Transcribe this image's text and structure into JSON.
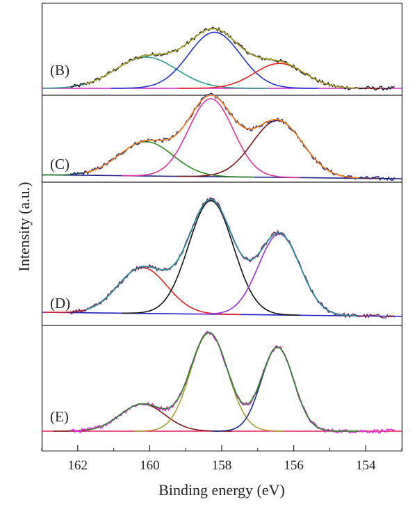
{
  "chart_data": {
    "type": "line",
    "title": "",
    "xlabel": "Binding energy (eV)",
    "ylabel": "Intensity (a.u.)",
    "xlim": [
      163,
      153
    ],
    "x_reversed": true,
    "x_ticks": [
      162,
      160,
      158,
      156,
      154
    ],
    "y_ticks_shown": false,
    "grid": false,
    "legend": "none",
    "panels": [
      {
        "label": "(B)",
        "baseline": 0.0,
        "raw_color": "#1a1a1a",
        "envelope_color": "#a8a030",
        "background_color": "#d020d0",
        "components": [
          {
            "center": 160.1,
            "sigma": 0.85,
            "height": 0.4,
            "color": "#2a9a8a"
          },
          {
            "center": 158.2,
            "sigma": 0.72,
            "height": 0.72,
            "color": "#2030d0"
          },
          {
            "center": 156.4,
            "sigma": 0.7,
            "height": 0.32,
            "color": "#e82020"
          }
        ]
      },
      {
        "label": "(C)",
        "baseline": 0.05,
        "raw_color": "#1a237e",
        "envelope_color": "#f08020",
        "background_color": "#20208a",
        "components": [
          {
            "center": 160.1,
            "sigma": 0.75,
            "height": 0.44,
            "color": "#2a8a20"
          },
          {
            "center": 158.3,
            "sigma": 0.62,
            "height": 1.0,
            "color": "#e0309a"
          },
          {
            "center": 156.45,
            "sigma": 0.7,
            "height": 0.73,
            "color": "#7a1010"
          }
        ]
      },
      {
        "label": "(D)",
        "baseline": 0.05,
        "raw_color": "#7a1a4a",
        "envelope_color": "#2a8a9a",
        "background_color": "#2020c0",
        "components": [
          {
            "center": 160.2,
            "sigma": 0.68,
            "height": 0.55,
            "color": "#e82020"
          },
          {
            "center": 158.3,
            "sigma": 0.62,
            "height": 1.36,
            "color": "#111111"
          },
          {
            "center": 156.4,
            "sigma": 0.58,
            "height": 0.97,
            "color": "#9a30e0"
          }
        ]
      },
      {
        "label": "(E)",
        "baseline": 0.0,
        "raw_color": "#e020e0",
        "envelope_color": "#3a7a3a",
        "background_color": "#e02060",
        "components": [
          {
            "center": 160.2,
            "sigma": 0.62,
            "height": 0.34,
            "color": "#7a1a1a"
          },
          {
            "center": 158.35,
            "sigma": 0.52,
            "height": 1.23,
            "color": "#a8a030"
          },
          {
            "center": 156.45,
            "sigma": 0.45,
            "height": 1.05,
            "color": "#1a2a8a"
          }
        ]
      }
    ]
  }
}
